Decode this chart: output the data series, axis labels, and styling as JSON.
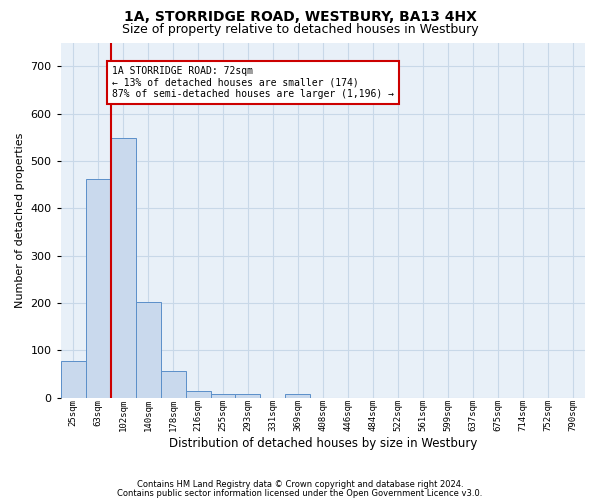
{
  "title_line1": "1A, STORRIDGE ROAD, WESTBURY, BA13 4HX",
  "title_line2": "Size of property relative to detached houses in Westbury",
  "xlabel": "Distribution of detached houses by size in Westbury",
  "ylabel": "Number of detached properties",
  "categories": [
    "25sqm",
    "63sqm",
    "102sqm",
    "140sqm",
    "178sqm",
    "216sqm",
    "255sqm",
    "293sqm",
    "331sqm",
    "369sqm",
    "408sqm",
    "446sqm",
    "484sqm",
    "522sqm",
    "561sqm",
    "599sqm",
    "637sqm",
    "675sqm",
    "714sqm",
    "752sqm",
    "790sqm"
  ],
  "values": [
    78,
    462,
    549,
    203,
    57,
    14,
    8,
    8,
    0,
    8,
    0,
    0,
    0,
    0,
    0,
    0,
    0,
    0,
    0,
    0,
    0
  ],
  "bar_color": "#c9d9ed",
  "bar_edge_color": "#5b8fc9",
  "annotation_line1": "1A STORRIDGE ROAD: 72sqm",
  "annotation_line2": "← 13% of detached houses are smaller (174)",
  "annotation_line3": "87% of semi-detached houses are larger (1,196) →",
  "property_line_x": 1.5,
  "ylim": [
    0,
    750
  ],
  "yticks": [
    0,
    100,
    200,
    300,
    400,
    500,
    600,
    700
  ],
  "footer_line1": "Contains HM Land Registry data © Crown copyright and database right 2024.",
  "footer_line2": "Contains public sector information licensed under the Open Government Licence v3.0.",
  "background_color": "#ffffff",
  "axes_background": "#e8f0f8",
  "grid_color": "#c8d8e8",
  "annotation_rect_color": "#cc0000"
}
